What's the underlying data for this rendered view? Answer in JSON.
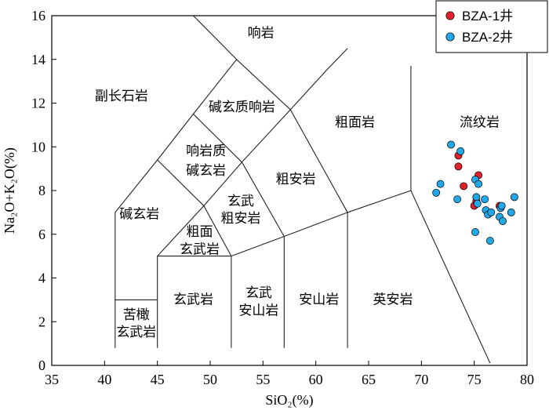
{
  "chart_data": {
    "type": "scatter",
    "title": "",
    "xlabel": "SiO₂(%)",
    "ylabel": "Na₂O+K₂O(%)",
    "xlim": [
      35,
      80
    ],
    "ylim": [
      0,
      16
    ],
    "x_ticks": [
      35,
      40,
      45,
      50,
      55,
      60,
      65,
      70,
      75,
      80
    ],
    "y_ticks": [
      0,
      2,
      4,
      6,
      8,
      10,
      12,
      14,
      16
    ],
    "legend_position": "top-right",
    "fields": [
      {
        "label": "响岩",
        "x": 54.8,
        "y": 15.2
      },
      {
        "label": "副长石岩",
        "x": 41.6,
        "y": 12.3
      },
      {
        "label": "碱玄质响岩",
        "x": 53.0,
        "y": 11.8
      },
      {
        "label": "粗面岩",
        "x": 63.7,
        "y": 11.1
      },
      {
        "label": "流纹岩",
        "x": 75.5,
        "y": 11.1
      },
      {
        "label": "响岩质",
        "x": 49.6,
        "y": 9.8
      },
      {
        "label": "碱玄岩",
        "x": 49.6,
        "y": 8.9
      },
      {
        "label": "粗安岩",
        "x": 58.1,
        "y": 8.5
      },
      {
        "label": "玄武",
        "x": 52.9,
        "y": 7.5
      },
      {
        "label": "粗安岩",
        "x": 52.9,
        "y": 6.7
      },
      {
        "label": "碱玄岩",
        "x": 43.3,
        "y": 6.9
      },
      {
        "label": "粗面",
        "x": 49.0,
        "y": 6.1
      },
      {
        "label": "玄武岩",
        "x": 49.0,
        "y": 5.3
      },
      {
        "label": "玄武岩",
        "x": 48.4,
        "y": 3.0
      },
      {
        "label": "玄武",
        "x": 54.6,
        "y": 3.3
      },
      {
        "label": "安山岩",
        "x": 54.6,
        "y": 2.5
      },
      {
        "label": "安山岩",
        "x": 60.3,
        "y": 3.0
      },
      {
        "label": "英安岩",
        "x": 67.3,
        "y": 3.0
      },
      {
        "label": "苦橄",
        "x": 43.0,
        "y": 2.3
      },
      {
        "label": "玄武岩",
        "x": 43.0,
        "y": 1.5
      }
    ],
    "boundaries": [
      [
        [
          41,
          0.8
        ],
        [
          41,
          7.0
        ],
        [
          45,
          9.4
        ],
        [
          48.4,
          11.5
        ],
        [
          52.5,
          14.0
        ],
        [
          57.6,
          11.7
        ],
        [
          63,
          7.0
        ],
        [
          69,
          8.0
        ],
        [
          76.5,
          0.1
        ]
      ],
      [
        [
          41,
          3.0
        ],
        [
          45,
          3.0
        ]
      ],
      [
        [
          45,
          0.8
        ],
        [
          45,
          5.0
        ],
        [
          52,
          5.0
        ],
        [
          57,
          5.9
        ],
        [
          63,
          7.0
        ]
      ],
      [
        [
          52,
          0.8
        ],
        [
          52,
          5.0
        ]
      ],
      [
        [
          57,
          0.8
        ],
        [
          57,
          5.9
        ],
        [
          53,
          9.3
        ],
        [
          57.6,
          11.7
        ],
        [
          61,
          13.5
        ],
        [
          63,
          14.5
        ]
      ],
      [
        [
          63,
          0.8
        ],
        [
          63,
          7.0
        ]
      ],
      [
        [
          45,
          5.0
        ],
        [
          49.4,
          7.3
        ],
        [
          45,
          9.4
        ]
      ],
      [
        [
          49.4,
          7.3
        ],
        [
          52,
          5.0
        ]
      ],
      [
        [
          49.4,
          7.3
        ],
        [
          53,
          9.3
        ],
        [
          48.4,
          11.5
        ]
      ],
      [
        [
          52.5,
          14.0
        ],
        [
          48.4,
          16.0
        ]
      ],
      [
        [
          69,
          8.0
        ],
        [
          69,
          13.7
        ]
      ]
    ],
    "series": [
      {
        "name": "BZA-1井",
        "color": "#e0202a",
        "points": [
          {
            "x": 73.5,
            "y": 9.6
          },
          {
            "x": 73.5,
            "y": 9.1
          },
          {
            "x": 75.4,
            "y": 8.7
          },
          {
            "x": 74.0,
            "y": 8.2
          },
          {
            "x": 75.0,
            "y": 7.3
          },
          {
            "x": 75.2,
            "y": 7.5
          },
          {
            "x": 77.4,
            "y": 7.3
          }
        ]
      },
      {
        "name": "BZA-2井",
        "color": "#22a8e6",
        "points": [
          {
            "x": 72.8,
            "y": 10.1
          },
          {
            "x": 73.7,
            "y": 9.8
          },
          {
            "x": 75.1,
            "y": 8.5
          },
          {
            "x": 75.4,
            "y": 8.3
          },
          {
            "x": 71.8,
            "y": 8.3
          },
          {
            "x": 71.4,
            "y": 7.9
          },
          {
            "x": 73.4,
            "y": 7.6
          },
          {
            "x": 75.2,
            "y": 7.7
          },
          {
            "x": 75.3,
            "y": 7.4
          },
          {
            "x": 76.0,
            "y": 7.6
          },
          {
            "x": 76.1,
            "y": 7.1
          },
          {
            "x": 76.3,
            "y": 6.9
          },
          {
            "x": 76.6,
            "y": 7.0
          },
          {
            "x": 77.5,
            "y": 7.2
          },
          {
            "x": 77.6,
            "y": 7.3
          },
          {
            "x": 78.8,
            "y": 7.7
          },
          {
            "x": 78.5,
            "y": 7.0
          },
          {
            "x": 77.4,
            "y": 6.8
          },
          {
            "x": 77.7,
            "y": 6.6
          },
          {
            "x": 75.1,
            "y": 6.1
          },
          {
            "x": 76.5,
            "y": 5.7
          }
        ]
      }
    ]
  }
}
